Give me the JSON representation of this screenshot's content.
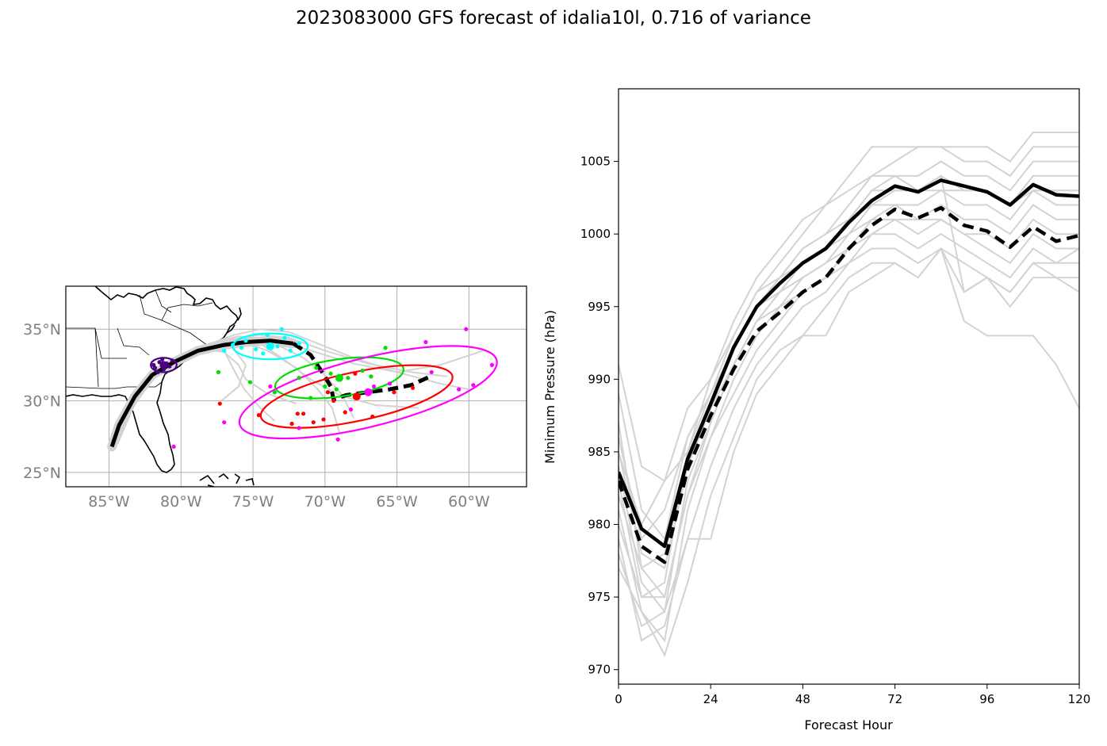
{
  "figure": {
    "title": "2023083000 GFS forecast of idalia10l, 0.716 of variance"
  },
  "chart_data": [
    {
      "type": "scatter",
      "panel": "track map",
      "title": "",
      "x_tick_labels": [
        "85°W",
        "80°W",
        "75°W",
        "70°W",
        "65°W",
        "60°W"
      ],
      "y_tick_labels": [
        "25°N",
        "30°N",
        "35°N"
      ],
      "x_ticks": [
        -85,
        -80,
        -75,
        -70,
        -65,
        -60
      ],
      "y_ticks": [
        25,
        30,
        35
      ],
      "xlim": [
        -88,
        -56
      ],
      "ylim": [
        24,
        38
      ],
      "grid": true,
      "mean_track_solid": {
        "lon": [
          -84.8,
          -84.3,
          -83.2,
          -82.0,
          -80.5,
          -78.8,
          -77.0,
          -75.5,
          -73.8,
          -72.2
        ],
        "lat": [
          26.8,
          28.3,
          30.3,
          31.8,
          32.7,
          33.5,
          33.9,
          34.1,
          34.2,
          34.0
        ]
      },
      "mean_track_dashed": {
        "lon": [
          -72.2,
          -71.0,
          -70.2,
          -69.6,
          -69.4,
          -68.5,
          -67.0,
          -65.5,
          -64.0,
          -62.7
        ],
        "lat": [
          34.0,
          33.2,
          32.0,
          31.0,
          30.1,
          30.4,
          30.6,
          30.8,
          31.1,
          31.7
        ]
      },
      "ellipses": [
        {
          "color": "#4b0082",
          "center": [
            -81.2,
            32.5
          ],
          "semi_axes": [
            0.9,
            0.5
          ],
          "angle_deg": 0
        },
        {
          "color": "#00ffff",
          "center": [
            -73.8,
            33.8
          ],
          "semi_axes": [
            2.6,
            0.9
          ],
          "angle_deg": 0
        },
        {
          "color": "#00dd00",
          "center": [
            -69.0,
            31.6
          ],
          "semi_axes": [
            4.5,
            1.3
          ],
          "angle_deg": 8
        },
        {
          "color": "#ff0000",
          "center": [
            -67.8,
            30.3
          ],
          "semi_axes": [
            6.8,
            1.7
          ],
          "angle_deg": 12
        },
        {
          "color": "#ff00ff",
          "center": [
            -67.0,
            30.6
          ],
          "semi_axes": [
            9.2,
            2.4
          ],
          "angle_deg": 14
        }
      ],
      "member_points": [
        {
          "color": "#4b0082",
          "lon": [
            -81.8,
            -81.5,
            -81.0,
            -80.8,
            -81.2,
            -81.6,
            -80.6,
            -81.9,
            -81.3
          ],
          "lat": [
            32.3,
            32.7,
            32.6,
            32.4,
            32.2,
            32.0,
            32.8,
            32.5,
            32.9
          ]
        },
        {
          "color": "#00ffff",
          "lon": [
            -77.0,
            -76.4,
            -75.5,
            -74.8,
            -74.0,
            -73.3,
            -72.8,
            -71.8,
            -74.3,
            -75.8,
            -73.0,
            -72.4
          ],
          "lat": [
            33.5,
            33.9,
            34.2,
            33.6,
            34.6,
            33.8,
            34.4,
            34.0,
            33.3,
            33.7,
            35.0,
            33.5
          ]
        },
        {
          "color": "#00dd00",
          "lon": [
            -77.4,
            -75.2,
            -73.5,
            -71.8,
            -70.6,
            -70.0,
            -69.2,
            -68.4,
            -67.4,
            -66.8,
            -71.0,
            -69.6,
            -65.8
          ],
          "lat": [
            32.0,
            31.3,
            30.6,
            31.6,
            32.3,
            31.0,
            30.8,
            31.6,
            32.1,
            31.7,
            30.2,
            31.9,
            33.7
          ]
        },
        {
          "color": "#ff0000",
          "lon": [
            -77.3,
            -74.6,
            -72.3,
            -71.5,
            -70.8,
            -70.1,
            -69.4,
            -68.6,
            -67.9,
            -66.7,
            -65.2,
            -63.9,
            -71.9,
            -69.8
          ],
          "lat": [
            29.8,
            29.0,
            28.4,
            29.1,
            28.5,
            28.7,
            30.0,
            29.2,
            31.9,
            28.9,
            30.6,
            30.9,
            29.1,
            30.6
          ]
        },
        {
          "color": "#ff00ff",
          "lon": [
            -80.5,
            -77.0,
            -73.8,
            -71.8,
            -69.1,
            -68.2,
            -65.5,
            -63.0,
            -62.6,
            -60.7,
            -59.7,
            -58.4,
            -60.2,
            -66.6
          ],
          "lat": [
            26.8,
            28.5,
            31.0,
            28.1,
            27.3,
            29.4,
            31.2,
            34.1,
            32.0,
            30.8,
            31.1,
            32.5,
            35.0,
            31.0
          ]
        }
      ],
      "ensemble_tracks": [
        {
          "lon": [
            -84.5,
            -83.5,
            -82.0,
            -80.2,
            -78.0,
            -76.0,
            -73.5,
            -71.0,
            -68.0,
            -65.0,
            -62.0,
            -59.0
          ],
          "lat": [
            27.0,
            29.5,
            31.7,
            33.0,
            34.0,
            34.5,
            34.3,
            33.5,
            32.6,
            32.0,
            32.5,
            33.5
          ]
        },
        {
          "lon": [
            -84.6,
            -83.6,
            -82.2,
            -80.5,
            -78.5,
            -76.5,
            -75.5,
            -76.0,
            -77.2
          ],
          "lat": [
            27.0,
            29.4,
            31.5,
            32.7,
            33.6,
            33.8,
            32.5,
            31.0,
            30.0
          ]
        },
        {
          "lon": [
            -84.4,
            -83.3,
            -81.8,
            -80.0,
            -78.0,
            -76.0,
            -74.0,
            -72.0,
            -70.5,
            -69.5,
            -69.0
          ],
          "lat": [
            27.0,
            29.6,
            31.8,
            33.1,
            34.0,
            34.2,
            33.5,
            32.3,
            30.8,
            29.5,
            27.8
          ]
        },
        {
          "lon": [
            -84.6,
            -83.4,
            -81.9,
            -80.1,
            -78.2,
            -76.4,
            -74.6,
            -72.5,
            -70.0,
            -67.0,
            -64.0,
            -61.5
          ],
          "lat": [
            26.9,
            29.5,
            31.6,
            32.9,
            33.8,
            34.3,
            34.6,
            34.4,
            33.5,
            32.6,
            32.0,
            31.7
          ]
        },
        {
          "lon": [
            -84.5,
            -83.5,
            -82.0,
            -80.3,
            -78.3,
            -76.5,
            -74.5,
            -73.0,
            -71.0,
            -69.0,
            -66.5,
            -63.5
          ],
          "lat": [
            27.0,
            29.4,
            31.6,
            32.9,
            33.8,
            34.2,
            34.0,
            33.0,
            31.5,
            30.4,
            29.7,
            29.5
          ]
        },
        {
          "lon": [
            -84.5,
            -83.4,
            -82.0,
            -80.2,
            -78.4,
            -77.0,
            -76.0,
            -75.5,
            -74.0,
            -72.0
          ],
          "lat": [
            27.0,
            29.5,
            31.6,
            32.8,
            33.6,
            33.4,
            32.5,
            31.5,
            30.5,
            29.8
          ]
        },
        {
          "lon": [
            -84.5,
            -83.4,
            -81.9,
            -80.0,
            -78.0,
            -75.8,
            -73.5,
            -71.5,
            -70.0,
            -68.8,
            -68.0
          ],
          "lat": [
            27.0,
            29.5,
            31.7,
            33.0,
            33.9,
            34.4,
            34.0,
            33.0,
            31.8,
            30.4,
            28.8
          ]
        },
        {
          "lon": [
            -84.5,
            -83.5,
            -82.0,
            -80.2,
            -78.2,
            -76.3,
            -74.5,
            -72.5,
            -70.5,
            -68.0,
            -65.0,
            -62.0,
            -60.0
          ],
          "lat": [
            27.0,
            29.5,
            31.7,
            33.0,
            33.9,
            34.6,
            35.0,
            34.8,
            34.0,
            33.0,
            32.0,
            31.2,
            30.8
          ]
        },
        {
          "lon": [
            -84.5,
            -83.4,
            -82.0,
            -80.4,
            -78.6,
            -77.0,
            -76.4,
            -75.6,
            -74.5,
            -73.5
          ],
          "lat": [
            27.0,
            29.5,
            31.5,
            32.8,
            33.5,
            33.5,
            32.3,
            30.8,
            29.5,
            28.6
          ]
        }
      ]
    },
    {
      "type": "line",
      "panel": "minimum pressure",
      "xlabel": "Forecast Hour",
      "ylabel": "Minimum Pressure (hPa)",
      "xlim": [
        0,
        120
      ],
      "ylim": [
        969,
        1010
      ],
      "x_ticks": [
        0,
        24,
        48,
        72,
        96,
        120
      ],
      "y_ticks": [
        970,
        975,
        980,
        985,
        990,
        995,
        1000,
        1005
      ],
      "x": [
        0,
        6,
        12,
        18,
        24,
        30,
        36,
        42,
        48,
        54,
        60,
        66,
        72,
        78,
        84,
        90,
        96,
        102,
        108,
        114,
        120
      ],
      "series": [
        {
          "style": "mean",
          "values": [
            983.6,
            979.7,
            978.5,
            984.5,
            988.3,
            992.2,
            995.0,
            996.6,
            998.0,
            999.0,
            1000.8,
            1002.3,
            1003.3,
            1002.9,
            1003.7,
            1003.3,
            1002.9,
            1002.0,
            1003.4,
            1002.7,
            1002.6
          ]
        },
        {
          "style": "dashed",
          "values": [
            983.0,
            978.5,
            977.4,
            983.8,
            987.5,
            990.7,
            993.3,
            994.6,
            996.0,
            997.0,
            999.0,
            1000.6,
            1001.7,
            1001.1,
            1001.8,
            1000.6,
            1000.2,
            999.1,
            1000.5,
            999.5,
            999.9
          ]
        },
        {
          "style": "member",
          "values": [
            991,
            984,
            983,
            985,
            990,
            993,
            996,
            998,
            1000,
            1002,
            1004,
            1006,
            1006,
            1006,
            1006,
            1006,
            1006,
            1005,
            1007,
            1007,
            1007
          ]
        },
        {
          "style": "member",
          "values": [
            989,
            981,
            979,
            986,
            989,
            992,
            995,
            997,
            999,
            1000,
            1002,
            1004,
            1005,
            1006,
            1006,
            1005,
            1005,
            1004,
            1006,
            1006,
            1006
          ]
        },
        {
          "style": "member",
          "values": [
            987,
            977,
            975,
            982,
            987,
            991,
            994,
            996,
            998,
            999,
            1001,
            1003,
            1004,
            1004,
            1005,
            1004,
            1004,
            1003,
            1005,
            1005,
            1005
          ]
        },
        {
          "style": "member",
          "values": [
            986,
            979,
            981,
            986,
            989,
            993,
            996,
            997,
            999,
            1000,
            1001,
            1003,
            1003,
            1003,
            1004,
            1003,
            1003,
            1002,
            1004,
            1004,
            1004
          ]
        },
        {
          "style": "member",
          "values": [
            985,
            978,
            977,
            984,
            988,
            992,
            995,
            997,
            998,
            999,
            1001,
            1002,
            1003,
            1003,
            1003,
            1003,
            1003,
            1002,
            1003,
            1003,
            1003
          ]
        },
        {
          "style": "member",
          "values": [
            984,
            976,
            974,
            983,
            987,
            991,
            994,
            996,
            998,
            999,
            1000,
            1002,
            1002,
            1002,
            1003,
            1002,
            1002,
            1001,
            1003,
            1002,
            1002
          ]
        },
        {
          "style": "member",
          "values": [
            983,
            975,
            976,
            985,
            989,
            992,
            995,
            996,
            997,
            998,
            1000,
            1001,
            1002,
            1001,
            1002,
            1001,
            1001,
            1000,
            1002,
            1001,
            1001
          ]
        },
        {
          "style": "member",
          "values": [
            982,
            977,
            978,
            984,
            988,
            991,
            994,
            995,
            997,
            998,
            999,
            1001,
            1001,
            1001,
            1001,
            1000,
            1000,
            999,
            1001,
            1000,
            1000
          ]
        },
        {
          "style": "member",
          "values": [
            981,
            974,
            972,
            981,
            986,
            990,
            993,
            995,
            996,
            997,
            999,
            1000,
            1001,
            1000,
            1001,
            1000,
            999,
            998,
            1000,
            999,
            999
          ]
        },
        {
          "style": "member",
          "values": [
            980,
            975,
            975,
            982,
            986,
            989,
            992,
            994,
            996,
            997,
            998,
            1000,
            1000,
            999,
            1000,
            999,
            998,
            997,
            999,
            998,
            999
          ]
        },
        {
          "style": "member",
          "values": [
            979,
            972,
            973,
            979,
            984,
            988,
            991,
            993,
            995,
            996,
            998,
            999,
            999,
            998,
            999,
            998,
            997,
            996,
            998,
            998,
            998
          ]
        },
        {
          "style": "member",
          "values": [
            977,
            974,
            971,
            976,
            982,
            986,
            990,
            992,
            993,
            995,
            997,
            998,
            998,
            997,
            999,
            996,
            997,
            995,
            997,
            997,
            996
          ]
        },
        {
          "style": "member",
          "values": [
            978,
            973,
            974,
            979,
            979,
            985,
            989,
            991,
            993,
            993,
            996,
            997,
            998,
            997,
            999,
            994,
            993,
            993,
            993,
            991,
            988
          ]
        },
        {
          "style": "member",
          "values": [
            985,
            980,
            983,
            988,
            990,
            994,
            997,
            999,
            1001,
            1002,
            1003,
            1004,
            1004,
            1003,
            1004,
            996,
            997,
            996,
            998,
            997,
            997
          ]
        }
      ]
    }
  ]
}
